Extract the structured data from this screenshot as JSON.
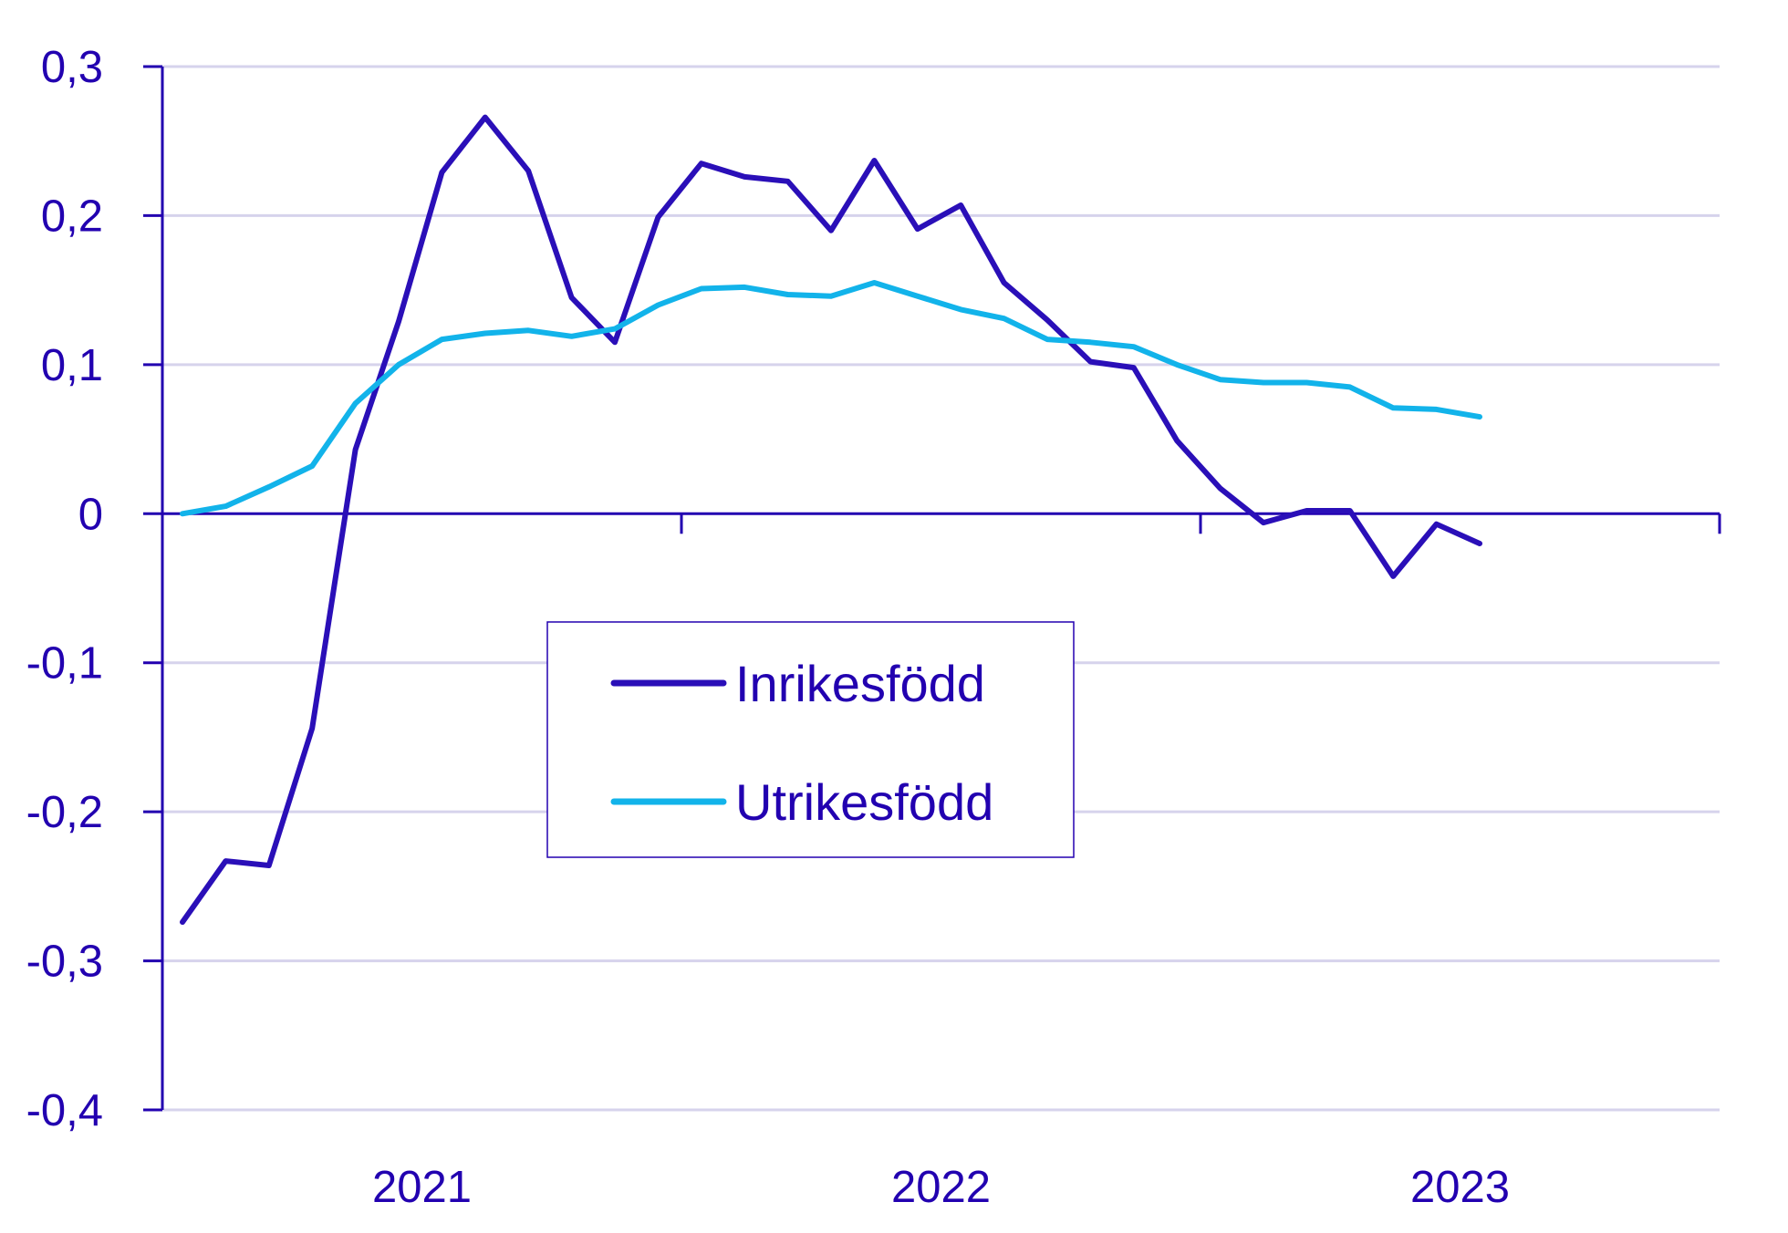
{
  "chart_data": {
    "type": "line",
    "title": "",
    "xlabel": "",
    "ylabel": "",
    "ylim": [
      -0.4,
      0.3
    ],
    "y_ticks": [
      0.3,
      0.2,
      0.1,
      0,
      -0.1,
      -0.2,
      -0.3,
      -0.4
    ],
    "y_tick_labels": [
      "0,3",
      "0,2",
      "0,1",
      "0",
      "-0,1",
      "-0,2",
      "-0,3",
      "-0,4"
    ],
    "x_tick_labels": [
      "2021",
      "2022",
      "2023"
    ],
    "x_range_months": 36,
    "grid": true,
    "legend_position": "center",
    "colors": {
      "axis": "#2200b0",
      "grid": "#d6d3ec",
      "Inrikesfödd": "#2a0fb8",
      "Utrikesfödd": "#12b3ea"
    },
    "series": [
      {
        "name": "Inrikesfödd",
        "values": [
          -0.274,
          -0.233,
          -0.236,
          -0.144,
          0.043,
          0.129,
          0.229,
          0.266,
          0.23,
          0.145,
          0.115,
          0.199,
          0.235,
          0.226,
          0.223,
          0.19,
          0.237,
          0.191,
          0.207,
          0.155,
          0.13,
          0.102,
          0.098,
          0.049,
          0.017,
          -0.006,
          0.002,
          0.002,
          -0.042,
          -0.007,
          -0.02
        ]
      },
      {
        "name": "Utrikesfödd",
        "values": [
          0.0,
          0.005,
          0.018,
          0.032,
          0.074,
          0.1,
          0.117,
          0.121,
          0.123,
          0.119,
          0.124,
          0.14,
          0.151,
          0.152,
          0.147,
          0.146,
          0.155,
          0.146,
          0.137,
          0.131,
          0.117,
          0.115,
          0.112,
          0.1,
          0.09,
          0.088,
          0.088,
          0.085,
          0.071,
          0.07,
          0.065
        ]
      }
    ]
  }
}
